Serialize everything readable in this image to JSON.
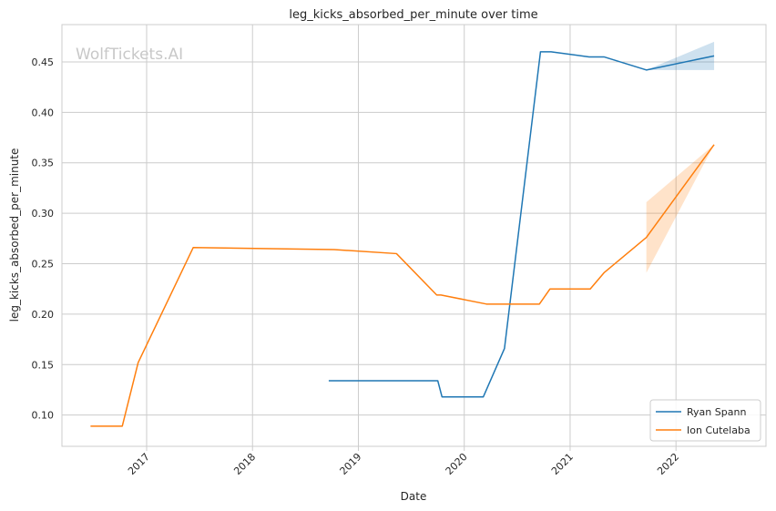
{
  "chart_data": {
    "type": "line",
    "title": "leg_kicks_absorbed_per_minute over time",
    "xlabel": "Date",
    "ylabel": "leg_kicks_absorbed_per_minute",
    "watermark": "WolfTickets.AI",
    "xlim": [
      2016.2,
      2022.85
    ],
    "ylim": [
      0.069,
      0.487
    ],
    "x_ticks": [
      2017,
      2018,
      2019,
      2020,
      2021,
      2022
    ],
    "x_tick_labels": [
      "2017",
      "2018",
      "2019",
      "2020",
      "2021",
      "2022"
    ],
    "y_ticks": [
      0.1,
      0.15,
      0.2,
      0.25,
      0.3,
      0.35,
      0.4,
      0.45
    ],
    "y_tick_labels": [
      "0.10",
      "0.15",
      "0.20",
      "0.25",
      "0.30",
      "0.35",
      "0.40",
      "0.45"
    ],
    "grid": true,
    "legend_position": "bottom-right",
    "series": [
      {
        "name": "Ryan Spann",
        "color": "#1f77b4",
        "points": [
          [
            2018.72,
            0.134
          ],
          [
            2019.75,
            0.134
          ],
          [
            2019.79,
            0.118
          ],
          [
            2020.18,
            0.118
          ],
          [
            2020.38,
            0.166
          ],
          [
            2020.72,
            0.46
          ],
          [
            2020.82,
            0.46
          ],
          [
            2021.18,
            0.455
          ],
          [
            2021.32,
            0.455
          ],
          [
            2021.72,
            0.442
          ],
          [
            2022.36,
            0.456
          ]
        ],
        "band": [
          [
            2021.72,
            0.442,
            0.442
          ],
          [
            2022.36,
            0.442,
            0.47
          ]
        ]
      },
      {
        "name": "Ion Cutelaba",
        "color": "#ff7f0e",
        "points": [
          [
            2016.47,
            0.089
          ],
          [
            2016.77,
            0.089
          ],
          [
            2016.92,
            0.152
          ],
          [
            2017.44,
            0.266
          ],
          [
            2018.77,
            0.264
          ],
          [
            2019.36,
            0.26
          ],
          [
            2019.74,
            0.219
          ],
          [
            2019.78,
            0.219
          ],
          [
            2020.21,
            0.21
          ],
          [
            2020.71,
            0.21
          ],
          [
            2020.81,
            0.225
          ],
          [
            2021.19,
            0.225
          ],
          [
            2021.32,
            0.241
          ],
          [
            2021.72,
            0.276
          ],
          [
            2022.36,
            0.368
          ]
        ],
        "band": [
          [
            2021.72,
            0.241,
            0.311
          ],
          [
            2022.36,
            0.368,
            0.368
          ]
        ]
      }
    ]
  }
}
